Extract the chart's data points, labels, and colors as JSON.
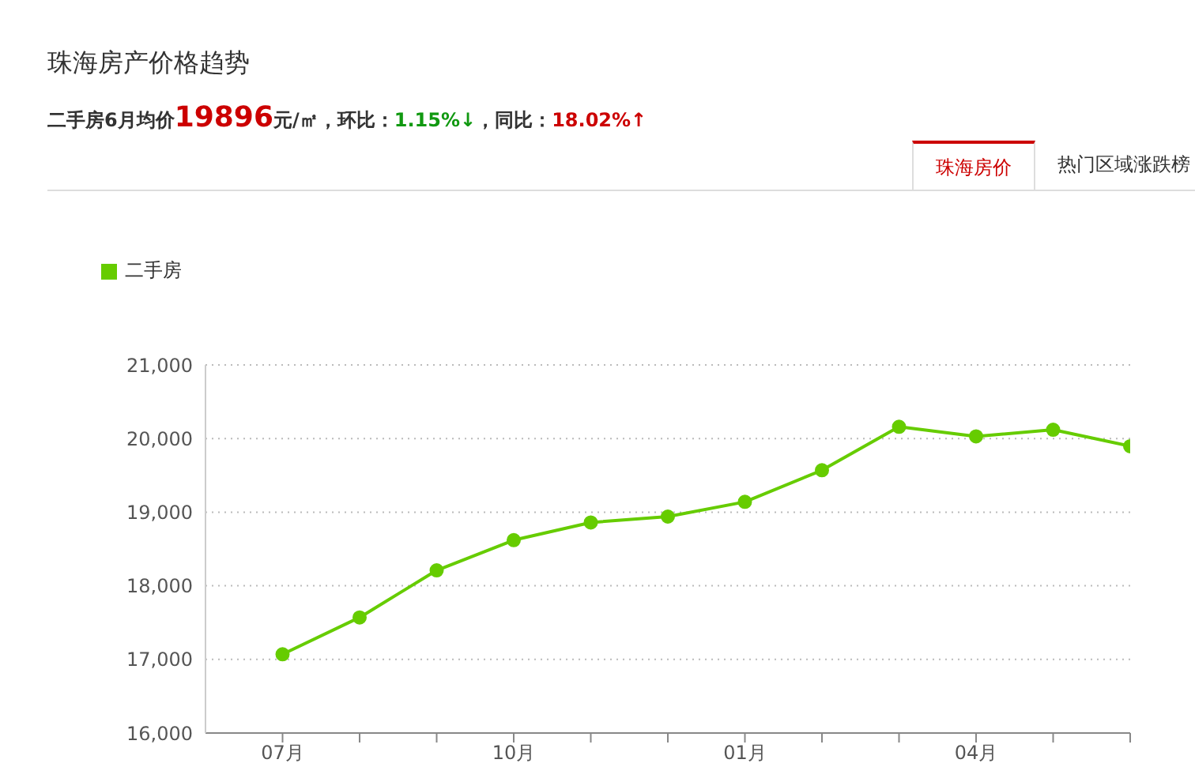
{
  "chart_data": {
    "type": "line",
    "title": "珠海房产价格趋势",
    "subtitle": "二手房6月均价19896元/㎡，环比：1.15%↓，同比：18.02%↑",
    "annotations": [
      "珠海房价",
      "热门区域涨跌榜"
    ],
    "categories": [
      "07月",
      null,
      null,
      "10月",
      null,
      null,
      "01月",
      null,
      null,
      "04月",
      null,
      null
    ],
    "series": [
      {
        "name": "二手房",
        "color": "#66cc00",
        "values": [
          17070,
          17570,
          18210,
          18620,
          18860,
          18940,
          19140,
          19570,
          20160,
          20030,
          20120,
          19896
        ]
      }
    ],
    "ylim": [
      16000,
      21000
    ],
    "yticks": [
      {
        "value": 16000,
        "label": "16,000"
      },
      {
        "value": 17000,
        "label": "17,000"
      },
      {
        "value": 18000,
        "label": "18,000"
      },
      {
        "value": 19000,
        "label": "19,000"
      },
      {
        "value": 20000,
        "label": "20,000"
      },
      {
        "value": 21000,
        "label": "21,000"
      }
    ],
    "grid": "y",
    "legend": "top left",
    "marker": "circle",
    "line_style": "solid"
  }
}
